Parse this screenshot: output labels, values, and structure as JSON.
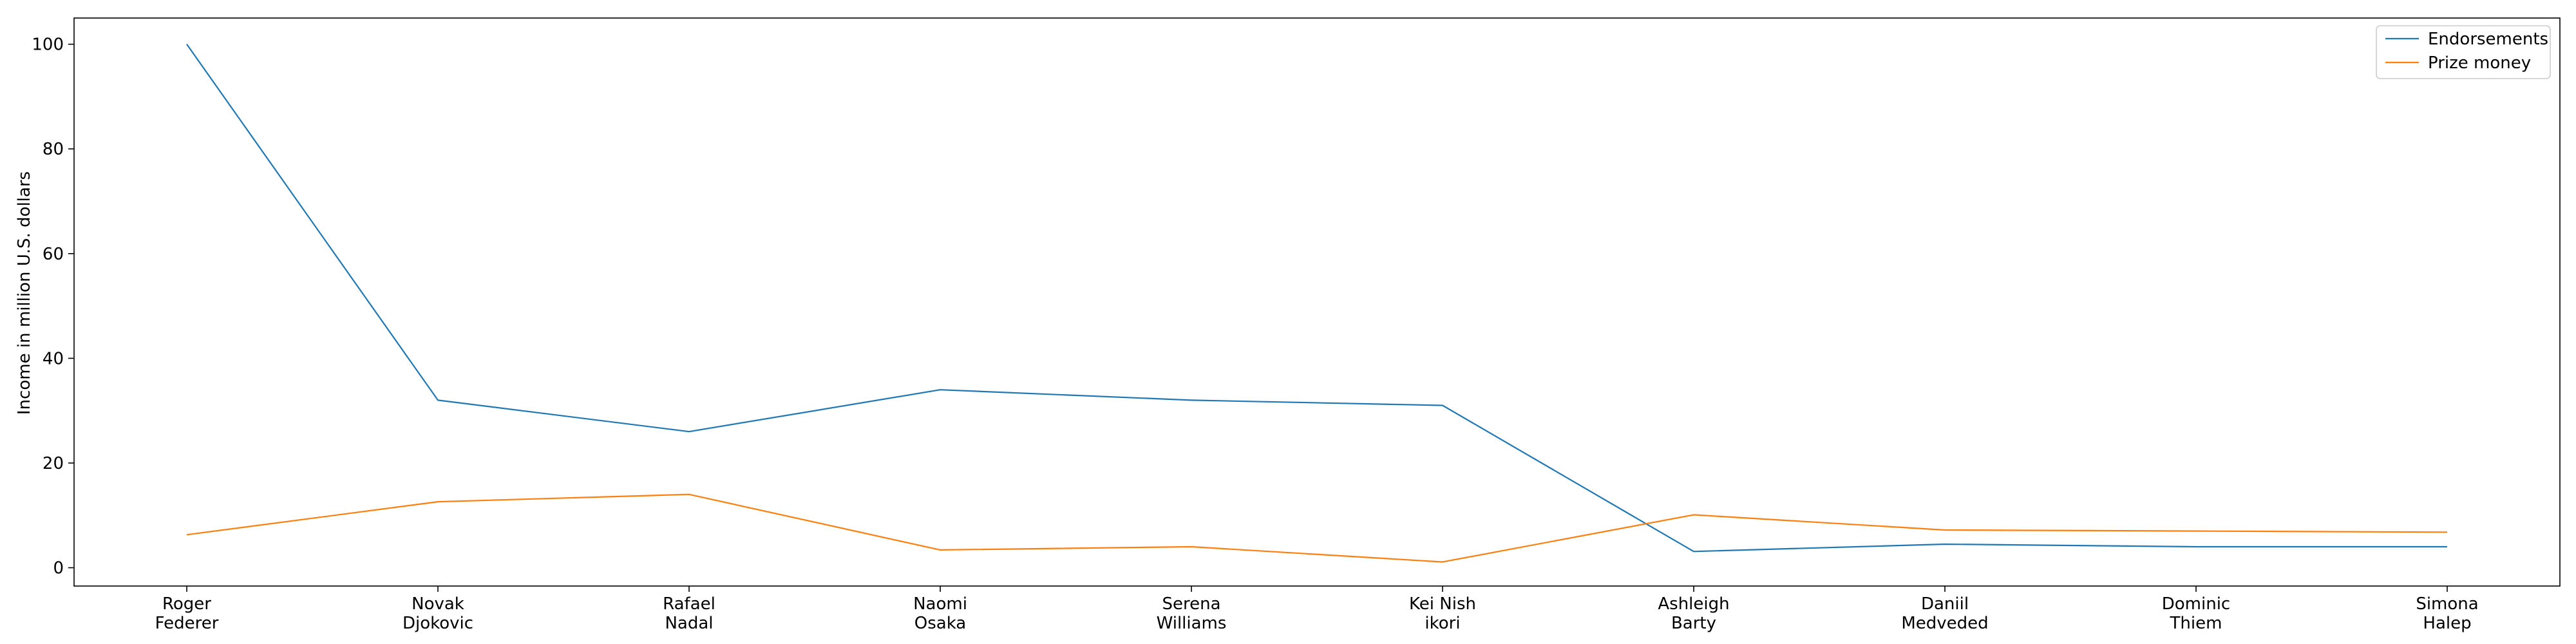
{
  "chart_data": {
    "type": "line",
    "title": "",
    "xlabel": "",
    "ylabel": "Income in million U.S. dollars",
    "categories": [
      [
        "Roger",
        "Federer"
      ],
      [
        "Novak",
        "Djokovic"
      ],
      [
        "Rafael",
        "Nadal"
      ],
      [
        "Naomi",
        "Osaka"
      ],
      [
        "Serena",
        "Williams"
      ],
      [
        "Kei Nish",
        "ikori"
      ],
      [
        "Ashleigh",
        "Barty"
      ],
      [
        "Daniil",
        "Medveded"
      ],
      [
        "Dominic",
        "Thiem"
      ],
      [
        "Simona",
        "Halep"
      ]
    ],
    "series": [
      {
        "name": "Endorsements",
        "color": "#1f77b4",
        "values": [
          100,
          32,
          26,
          34,
          32,
          31,
          3.1,
          4.5,
          4.0,
          4.0
        ]
      },
      {
        "name": "Prize money",
        "color": "#ff7f0e",
        "values": [
          6.3,
          12.6,
          14.0,
          3.4,
          4.0,
          1.1,
          10.1,
          7.2,
          7.0,
          6.8
        ]
      }
    ],
    "ylim": [
      -3.5,
      105
    ],
    "yticks": [
      0,
      20,
      40,
      60,
      80,
      100
    ],
    "grid": false,
    "legend_position": "top-right"
  }
}
